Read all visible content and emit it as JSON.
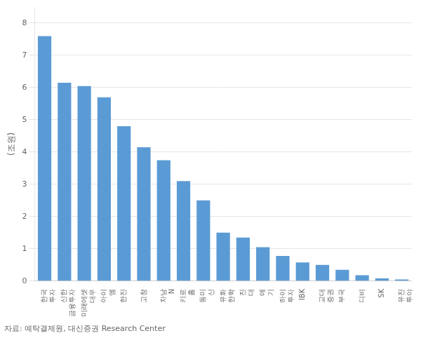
{
  "chart_data": {
    "type": "bar",
    "categories": [
      "한국\n투자",
      "신한\n금융투자",
      "미래에셋\n대우",
      "아이\n엠",
      "한진",
      "고창",
      "차남\nN",
      "키로\n홈",
      "동미\n신",
      "유화\n한학",
      "진\n대",
      "애\n기",
      "하이\n투자",
      "IBK",
      "교대\n증권",
      "부국",
      "디비",
      "SK",
      "유진\n투야"
    ],
    "values": [
      7.6,
      6.15,
      6.05,
      5.7,
      4.8,
      4.15,
      3.75,
      3.1,
      2.5,
      1.5,
      1.35,
      1.05,
      0.78,
      0.58,
      0.5,
      0.35,
      0.18,
      0.08,
      0.05
    ],
    "color": "#5B9BD5",
    "ylabel": "(조원)",
    "ylim": [
      0,
      8.5
    ],
    "yticks": [
      0,
      1,
      2,
      3,
      4,
      5,
      6,
      7,
      8
    ],
    "grid": true,
    "footnote": "자료: 예탁결제원, 대신증권 Research Center"
  }
}
